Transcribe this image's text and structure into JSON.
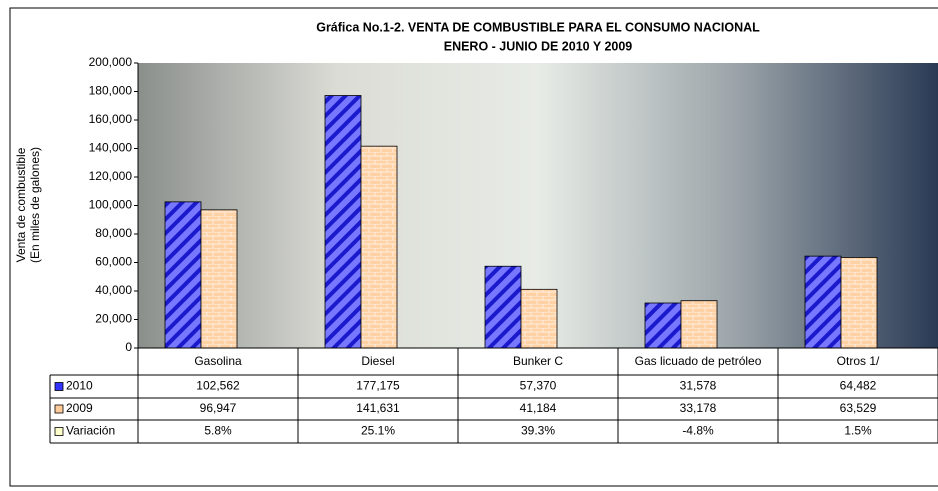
{
  "chart_data": {
    "type": "bar",
    "title": "Gráfica No.1-2.  VENTA DE COMBUSTIBLE PARA EL CONSUMO NACIONAL",
    "subtitle": "ENERO - JUNIO DE 2010 Y 2009",
    "y_label": [
      "Venta de combustible",
      "(En miles de galones)"
    ],
    "categories": [
      "Gasolina",
      "Diesel",
      "Bunker C",
      "Gas licuado de petróleo",
      "Otros 1/"
    ],
    "series": [
      {
        "name": "2010",
        "color": "#3333ff",
        "values": [
          102562,
          177175,
          57370,
          31578,
          64482
        ],
        "value_labels": [
          "102,562",
          "177,175",
          "57,370",
          "31,578",
          "64,482"
        ]
      },
      {
        "name": "2009",
        "color": "#ffcc99",
        "values": [
          96947,
          141631,
          41184,
          33178,
          63529
        ],
        "value_labels": [
          "96,947",
          "141,631",
          "41,184",
          "33,178",
          "63,529"
        ]
      }
    ],
    "table_rows": [
      {
        "name": "Variación",
        "color": "#ffffcc",
        "values": [
          5.8,
          25.1,
          39.3,
          -4.8,
          1.5
        ],
        "value_labels": [
          "5.8%",
          "25.1%",
          "39.3%",
          "-4.8%",
          "1.5%"
        ]
      }
    ],
    "ylim": [
      0,
      200000
    ],
    "yticks": [
      0,
      {
        "value": 20000,
        "label": "20,000"
      },
      {
        "value": 40000,
        "label": "40,000"
      },
      {
        "value": 60000,
        "label": "60,000"
      },
      {
        "value": 80000,
        "label": "80,000"
      },
      {
        "value": 100000,
        "label": "100,000"
      },
      {
        "value": 120000,
        "label": "120,000"
      },
      {
        "value": 140000,
        "label": "140,000"
      },
      {
        "value": 160000,
        "label": "160,000"
      },
      {
        "value": 180000,
        "label": "180,000"
      },
      {
        "value": 200000,
        "label": "200,000"
      }
    ]
  }
}
